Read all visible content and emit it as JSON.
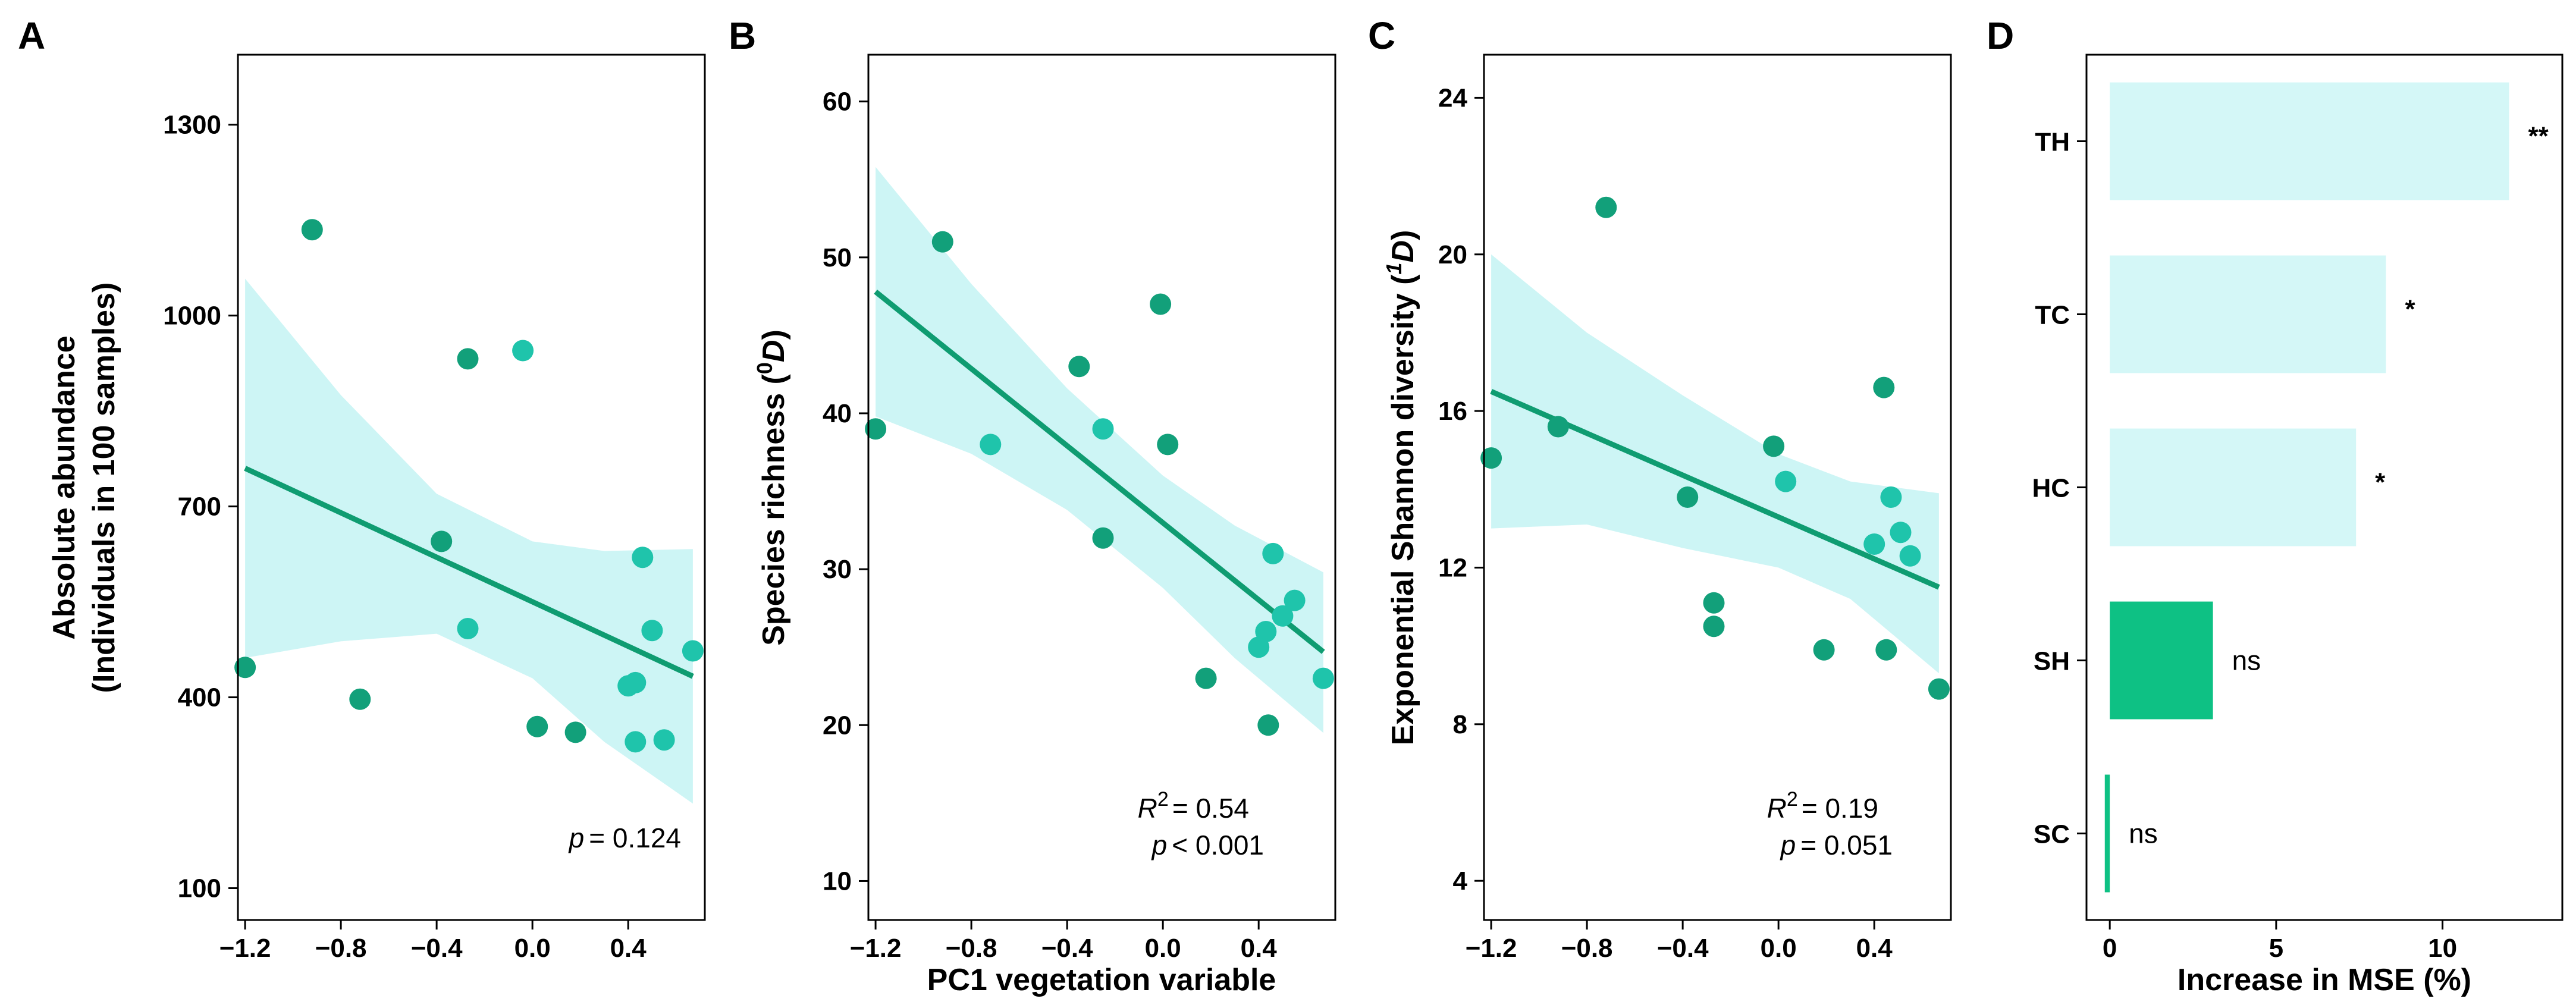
{
  "colors": {
    "point": "#12a07a",
    "point_light": "#1fc4ab",
    "fit_line": "#0f9c71",
    "ci_band": "#cdf5f5",
    "bar_light": "#d4f7f7",
    "bar_dark": "#0ec184"
  },
  "chart_data": [
    {
      "panel": "A",
      "type": "scatter",
      "xlabel": "",
      "ylabel_line1": "Absolute abundance",
      "ylabel_line2": "(Individuals in 100 samples)",
      "xlim": [
        -1.23,
        0.72
      ],
      "ylim": [
        50,
        1410
      ],
      "xticks": [
        -1.2,
        -0.8,
        -0.4,
        0.0,
        0.4
      ],
      "xtick_labels": [
        "−1.2",
        "−0.8",
        "−0.4",
        "0.0",
        "0.4"
      ],
      "yticks": [
        100,
        400,
        700,
        1000,
        1300
      ],
      "ytick_labels": [
        "100",
        "400",
        "700",
        "1000",
        "1300"
      ],
      "points": [
        {
          "x": -1.2,
          "y": 447,
          "shade": "dark"
        },
        {
          "x": -0.92,
          "y": 1135,
          "shade": "dark"
        },
        {
          "x": -0.72,
          "y": 397,
          "shade": "dark"
        },
        {
          "x": -0.38,
          "y": 645,
          "shade": "dark"
        },
        {
          "x": -0.27,
          "y": 932,
          "shade": "dark"
        },
        {
          "x": -0.27,
          "y": 508,
          "shade": "light"
        },
        {
          "x": -0.04,
          "y": 945,
          "shade": "light"
        },
        {
          "x": 0.02,
          "y": 354,
          "shade": "dark"
        },
        {
          "x": 0.18,
          "y": 345,
          "shade": "dark"
        },
        {
          "x": 0.4,
          "y": 418,
          "shade": "light"
        },
        {
          "x": 0.43,
          "y": 423,
          "shade": "light"
        },
        {
          "x": 0.43,
          "y": 330,
          "shade": "light"
        },
        {
          "x": 0.46,
          "y": 620,
          "shade": "light"
        },
        {
          "x": 0.5,
          "y": 505,
          "shade": "light"
        },
        {
          "x": 0.55,
          "y": 333,
          "shade": "light"
        },
        {
          "x": 0.67,
          "y": 473,
          "shade": "light"
        }
      ],
      "fit": {
        "x": [
          -1.2,
          0.67
        ],
        "y": [
          760,
          433
        ]
      },
      "ci": {
        "x": [
          -1.2,
          -0.8,
          -0.4,
          0.0,
          0.3,
          0.67
        ],
        "upper": [
          1058,
          875,
          720,
          645,
          630,
          633
        ],
        "lower": [
          462,
          488,
          500,
          430,
          330,
          233
        ]
      },
      "annotations": {
        "r2": "",
        "p_label": "p",
        "p_value": "= 0.124"
      }
    },
    {
      "panel": "B",
      "type": "scatter",
      "xlabel": "PC1 vegetation variable",
      "ylabel_main": "Species richness (",
      "ylabel_super": "0",
      "ylabel_var": "D",
      "ylabel_close": ")",
      "xlim": [
        -1.23,
        0.72
      ],
      "ylim": [
        7.5,
        63
      ],
      "xticks": [
        -1.2,
        -0.8,
        -0.4,
        0.0,
        0.4
      ],
      "xtick_labels": [
        "−1.2",
        "−0.8",
        "−0.4",
        "0.0",
        "0.4"
      ],
      "yticks": [
        10,
        20,
        30,
        40,
        50,
        60
      ],
      "ytick_labels": [
        "10",
        "20",
        "30",
        "40",
        "50",
        "60"
      ],
      "points": [
        {
          "x": -1.2,
          "y": 39,
          "shade": "dark"
        },
        {
          "x": -0.92,
          "y": 51,
          "shade": "dark"
        },
        {
          "x": -0.72,
          "y": 38,
          "shade": "light"
        },
        {
          "x": -0.35,
          "y": 43,
          "shade": "dark"
        },
        {
          "x": -0.25,
          "y": 39,
          "shade": "light"
        },
        {
          "x": -0.25,
          "y": 32,
          "shade": "dark"
        },
        {
          "x": -0.01,
          "y": 47,
          "shade": "dark"
        },
        {
          "x": 0.02,
          "y": 38,
          "shade": "dark"
        },
        {
          "x": 0.18,
          "y": 23,
          "shade": "dark"
        },
        {
          "x": 0.4,
          "y": 25,
          "shade": "light"
        },
        {
          "x": 0.43,
          "y": 26,
          "shade": "light"
        },
        {
          "x": 0.44,
          "y": 20,
          "shade": "dark"
        },
        {
          "x": 0.46,
          "y": 31,
          "shade": "light"
        },
        {
          "x": 0.5,
          "y": 27,
          "shade": "light"
        },
        {
          "x": 0.55,
          "y": 28,
          "shade": "light"
        },
        {
          "x": 0.67,
          "y": 23,
          "shade": "light"
        }
      ],
      "fit": {
        "x": [
          -1.2,
          0.67
        ],
        "y": [
          47.8,
          24.7
        ]
      },
      "ci": {
        "x": [
          -1.2,
          -0.8,
          -0.4,
          0.0,
          0.3,
          0.67
        ],
        "upper": [
          55.8,
          48.3,
          41.6,
          36.0,
          32.8,
          29.8
        ],
        "lower": [
          39.8,
          37.4,
          33.8,
          28.8,
          24.3,
          19.5
        ]
      },
      "annotations": {
        "r2_label": "R",
        "r2_super": "2",
        "r2_value": "= 0.54",
        "p_label": "p",
        "p_value": "< 0.001"
      }
    },
    {
      "panel": "C",
      "type": "scatter",
      "xlabel": "",
      "ylabel_main": "Exponential Shannon diversity (",
      "ylabel_super": "1",
      "ylabel_var": "D",
      "ylabel_close": ")",
      "xlim": [
        -1.23,
        0.72
      ],
      "ylim": [
        3,
        25.1
      ],
      "xticks": [
        -1.2,
        -0.8,
        -0.4,
        0.0,
        0.4
      ],
      "xtick_labels": [
        "−1.2",
        "−0.8",
        "−0.4",
        "0.0",
        "0.4"
      ],
      "yticks": [
        4,
        8,
        12,
        16,
        20,
        24
      ],
      "ytick_labels": [
        "4",
        "8",
        "12",
        "16",
        "20",
        "24"
      ],
      "points": [
        {
          "x": -1.2,
          "y": 14.8,
          "shade": "dark"
        },
        {
          "x": -0.92,
          "y": 15.6,
          "shade": "dark"
        },
        {
          "x": -0.72,
          "y": 21.2,
          "shade": "dark"
        },
        {
          "x": -0.38,
          "y": 13.8,
          "shade": "dark"
        },
        {
          "x": -0.27,
          "y": 11.1,
          "shade": "dark"
        },
        {
          "x": -0.27,
          "y": 10.5,
          "shade": "dark"
        },
        {
          "x": -0.02,
          "y": 15.1,
          "shade": "dark"
        },
        {
          "x": 0.03,
          "y": 14.2,
          "shade": "light"
        },
        {
          "x": 0.19,
          "y": 9.9,
          "shade": "dark"
        },
        {
          "x": 0.4,
          "y": 12.6,
          "shade": "light"
        },
        {
          "x": 0.44,
          "y": 16.6,
          "shade": "dark"
        },
        {
          "x": 0.45,
          "y": 9.9,
          "shade": "dark"
        },
        {
          "x": 0.47,
          "y": 13.8,
          "shade": "light"
        },
        {
          "x": 0.51,
          "y": 12.9,
          "shade": "light"
        },
        {
          "x": 0.55,
          "y": 12.3,
          "shade": "light"
        },
        {
          "x": 0.67,
          "y": 8.9,
          "shade": "dark"
        }
      ],
      "fit": {
        "x": [
          -1.2,
          0.67
        ],
        "y": [
          16.5,
          11.5
        ]
      },
      "ci": {
        "x": [
          -1.2,
          -0.8,
          -0.4,
          0.0,
          0.3,
          0.67
        ],
        "upper": [
          20.0,
          18.0,
          16.4,
          14.9,
          14.2,
          13.9
        ],
        "lower": [
          13.0,
          13.1,
          12.5,
          12.0,
          11.2,
          9.3
        ]
      },
      "annotations": {
        "r2_label": "R",
        "r2_super": "2",
        "r2_value": "= 0.19",
        "p_label": "p",
        "p_value": "= 0.051"
      }
    },
    {
      "panel": "D",
      "type": "bar",
      "orientation": "horizontal",
      "xlabel": "Increase in MSE (%)",
      "ylabel": "",
      "xlim": [
        -0.7,
        13.6
      ],
      "xticks": [
        0,
        5,
        10
      ],
      "xtick_labels": [
        "0",
        "5",
        "10"
      ],
      "categories": [
        "TH",
        "TC",
        "HC",
        "SH",
        "SC"
      ],
      "values": [
        12.0,
        8.3,
        7.4,
        3.1,
        -0.15
      ],
      "shades": [
        "light",
        "light",
        "light",
        "dark",
        "dark"
      ],
      "significance": [
        "**",
        "*",
        "*",
        "ns",
        "ns"
      ]
    }
  ]
}
